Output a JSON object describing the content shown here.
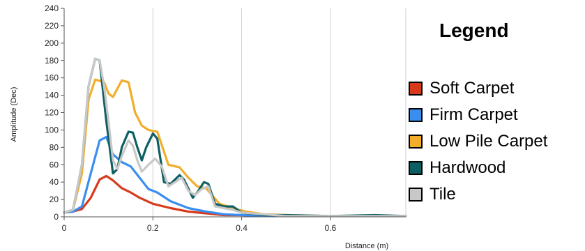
{
  "chart_data": {
    "type": "line",
    "title": "",
    "xlabel": "Distance (m)",
    "ylabel": "Amplitude (Dec)",
    "xlim": [
      0,
      0.77
    ],
    "ylim": [
      0,
      240
    ],
    "xticks": [
      "0",
      "0.2",
      "0.4",
      "0.6"
    ],
    "xtick_values": [
      0,
      0.2,
      0.4,
      0.6
    ],
    "yticks": [
      "0",
      "20",
      "40",
      "60",
      "80",
      "100",
      "120",
      "140",
      "160",
      "180",
      "200",
      "220",
      "240"
    ],
    "ytick_values": [
      0,
      20,
      40,
      60,
      80,
      100,
      120,
      140,
      160,
      180,
      200,
      220,
      240
    ],
    "grid": "vertical",
    "legend_title": "Legend",
    "legend_position": "right",
    "series": [
      {
        "name": "Soft Carpet",
        "color": "#d9391b",
        "x": [
          0,
          0.02,
          0.04,
          0.06,
          0.08,
          0.095,
          0.11,
          0.13,
          0.15,
          0.17,
          0.2,
          0.24,
          0.28,
          0.32,
          0.36,
          0.4,
          0.45,
          0.5,
          0.6,
          0.7,
          0.77
        ],
        "y": [
          5,
          6,
          9,
          22,
          43,
          47,
          42,
          33,
          28,
          22,
          15,
          10,
          6,
          4,
          2,
          2,
          1,
          1,
          1,
          1,
          1
        ]
      },
      {
        "name": "Firm Carpet",
        "color": "#3a8ef0",
        "x": [
          0,
          0.02,
          0.04,
          0.06,
          0.08,
          0.095,
          0.11,
          0.13,
          0.15,
          0.17,
          0.19,
          0.21,
          0.24,
          0.28,
          0.32,
          0.36,
          0.4,
          0.45,
          0.5,
          0.6,
          0.7,
          0.77
        ],
        "y": [
          5,
          6,
          12,
          50,
          88,
          92,
          72,
          63,
          58,
          45,
          32,
          28,
          18,
          10,
          6,
          3,
          2,
          1,
          1,
          1,
          1,
          1
        ]
      },
      {
        "name": "Low Pile Carpet",
        "color": "#f2ae2a",
        "x": [
          0,
          0.02,
          0.04,
          0.055,
          0.07,
          0.09,
          0.1,
          0.11,
          0.13,
          0.145,
          0.16,
          0.175,
          0.19,
          0.21,
          0.235,
          0.26,
          0.28,
          0.3,
          0.32,
          0.35,
          0.38,
          0.41,
          0.45,
          0.5,
          0.6,
          0.7,
          0.77
        ],
        "y": [
          5,
          8,
          50,
          135,
          158,
          155,
          142,
          138,
          157,
          155,
          120,
          105,
          100,
          98,
          60,
          57,
          45,
          35,
          33,
          15,
          10,
          6,
          3,
          2,
          1,
          1,
          1
        ]
      },
      {
        "name": "Hardwood",
        "color": "#0e5f63",
        "x": [
          0,
          0.02,
          0.04,
          0.055,
          0.07,
          0.08,
          0.095,
          0.11,
          0.12,
          0.13,
          0.145,
          0.155,
          0.165,
          0.175,
          0.185,
          0.2,
          0.21,
          0.225,
          0.24,
          0.26,
          0.27,
          0.29,
          0.3,
          0.315,
          0.325,
          0.34,
          0.36,
          0.38,
          0.4,
          0.45,
          0.5,
          0.6,
          0.7,
          0.77
        ],
        "y": [
          5,
          8,
          60,
          150,
          182,
          180,
          110,
          50,
          55,
          80,
          98,
          97,
          80,
          65,
          80,
          96,
          90,
          40,
          38,
          48,
          43,
          22,
          28,
          40,
          38,
          15,
          12,
          12,
          5,
          2,
          2,
          1,
          2,
          1
        ]
      },
      {
        "name": "Tile",
        "color": "#c8c8c8",
        "x": [
          0,
          0.02,
          0.04,
          0.055,
          0.07,
          0.08,
          0.09,
          0.1,
          0.11,
          0.12,
          0.13,
          0.145,
          0.155,
          0.165,
          0.175,
          0.19,
          0.205,
          0.22,
          0.235,
          0.25,
          0.265,
          0.28,
          0.295,
          0.31,
          0.325,
          0.34,
          0.36,
          0.38,
          0.4,
          0.45,
          0.5,
          0.6,
          0.7,
          0.77
        ],
        "y": [
          5,
          8,
          60,
          150,
          182,
          180,
          150,
          110,
          65,
          55,
          70,
          88,
          82,
          65,
          52,
          60,
          67,
          58,
          35,
          40,
          45,
          30,
          25,
          32,
          35,
          12,
          10,
          8,
          5,
          3,
          1,
          1,
          1,
          1
        ]
      }
    ]
  }
}
